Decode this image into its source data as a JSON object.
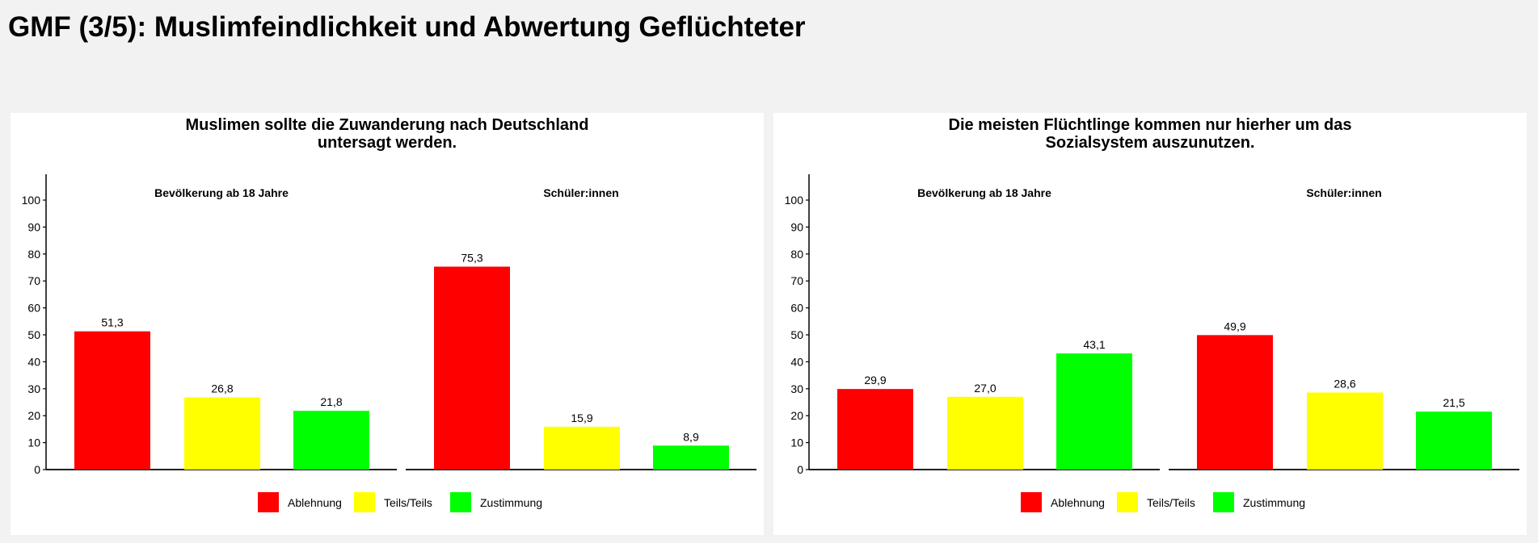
{
  "page": {
    "title": "GMF (3/5): Muslimfeindlichkeit und Abwertung Geflüchteter"
  },
  "colors": {
    "background": "#f2f2f2",
    "panel": "#ffffff",
    "Ablehnung": "#ff0000",
    "Teils/Teils": "#ffff00",
    "Zustimmung": "#00ff00"
  },
  "chart_data": [
    {
      "type": "bar",
      "title_lines": [
        "Muslimen sollte die Zuwanderung nach Deutschland",
        "untersagt werden."
      ],
      "facets": [
        "Bevölkerung ab 18 Jahre",
        "Schüler:innen"
      ],
      "categories": [
        "Ablehnung",
        "Teils/Teils",
        "Zustimmung"
      ],
      "series": [
        {
          "name": "Bevölkerung ab 18 Jahre",
          "values": [
            51.3,
            26.8,
            21.8
          ],
          "labels": [
            "51,3",
            "26,8",
            "21,8"
          ]
        },
        {
          "name": "Schüler:innen",
          "values": [
            75.3,
            15.9,
            8.9
          ],
          "labels": [
            "75,3",
            "15,9",
            "8,9"
          ]
        }
      ],
      "yticks": [
        "0",
        "10",
        "20",
        "30",
        "40",
        "50",
        "60",
        "70",
        "80",
        "90",
        "100"
      ],
      "ylim": [
        0,
        105
      ],
      "xlabel": "",
      "ylabel": "",
      "grid": false,
      "legend": {
        "position": "bottom",
        "entries": [
          "Ablehnung",
          "Teils/Teils",
          "Zustimmung"
        ]
      }
    },
    {
      "type": "bar",
      "title_lines": [
        "Die meisten Flüchtlinge kommen nur hierher um das",
        "Sozialsystem auszunutzen."
      ],
      "facets": [
        "Bevölkerung ab 18 Jahre",
        "Schüler:innen"
      ],
      "categories": [
        "Ablehnung",
        "Teils/Teils",
        "Zustimmung"
      ],
      "series": [
        {
          "name": "Bevölkerung ab 18 Jahre",
          "values": [
            29.9,
            27.0,
            43.1
          ],
          "labels": [
            "29,9",
            "27,0",
            "43,1"
          ]
        },
        {
          "name": "Schüler:innen",
          "values": [
            49.9,
            28.6,
            21.5
          ],
          "labels": [
            "49,9",
            "28,6",
            "21,5"
          ]
        }
      ],
      "yticks": [
        "0",
        "10",
        "20",
        "30",
        "40",
        "50",
        "60",
        "70",
        "80",
        "90",
        "100"
      ],
      "ylim": [
        0,
        105
      ],
      "xlabel": "",
      "ylabel": "",
      "grid": false,
      "legend": {
        "position": "bottom",
        "entries": [
          "Ablehnung",
          "Teils/Teils",
          "Zustimmung"
        ]
      }
    }
  ]
}
